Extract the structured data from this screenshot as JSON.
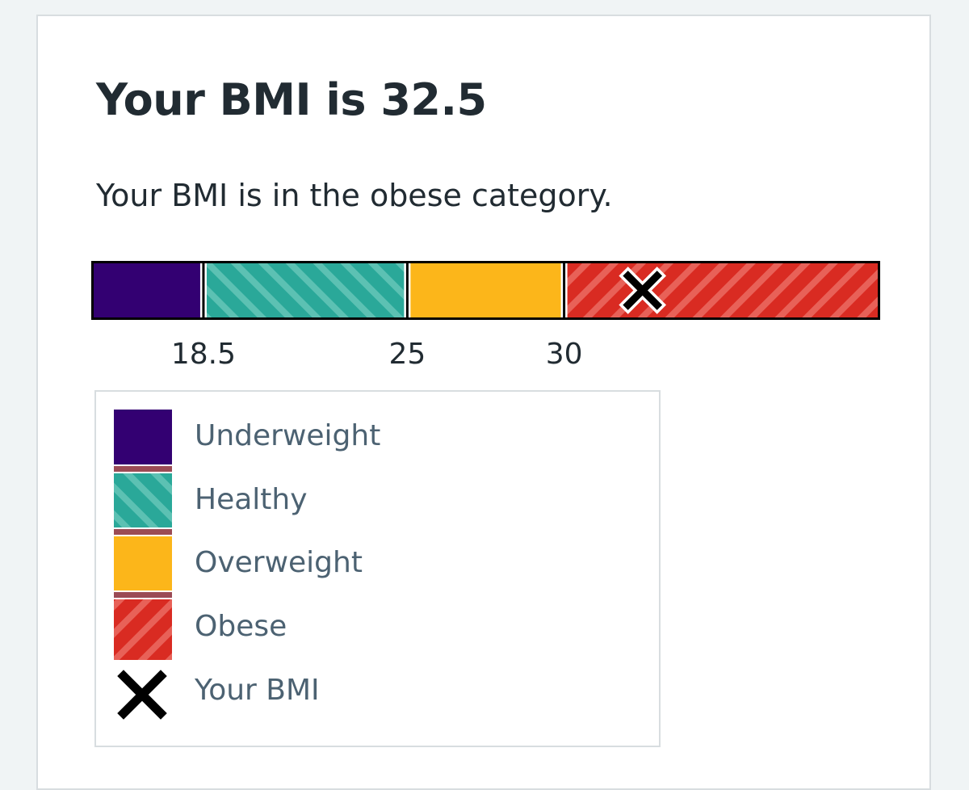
{
  "result": {
    "title": "Your BMI is 32.5",
    "category_text": "Your BMI is in the obese category."
  },
  "chart_data": {
    "type": "bar",
    "bmi_value": 32.5,
    "scale": [
      15,
      40
    ],
    "thresholds": [
      18.5,
      25,
      30
    ],
    "tick_labels": [
      "18.5",
      "25",
      "30"
    ],
    "categories": [
      {
        "name": "Underweight",
        "from": 15,
        "to": 18.5,
        "color": "#330072",
        "pattern": "solid"
      },
      {
        "name": "Healthy",
        "from": 18.5,
        "to": 25,
        "color": "#2aa899",
        "pattern": "hatched"
      },
      {
        "name": "Overweight",
        "from": 25,
        "to": 30,
        "color": "#fcb61a",
        "pattern": "solid"
      },
      {
        "name": "Obese",
        "from": 30,
        "to": 40,
        "color": "#d92b22",
        "pattern": "hatched"
      }
    ]
  },
  "legend": {
    "items": [
      "Underweight",
      "Healthy",
      "Overweight",
      "Obese"
    ],
    "marker_label": "Your BMI"
  }
}
